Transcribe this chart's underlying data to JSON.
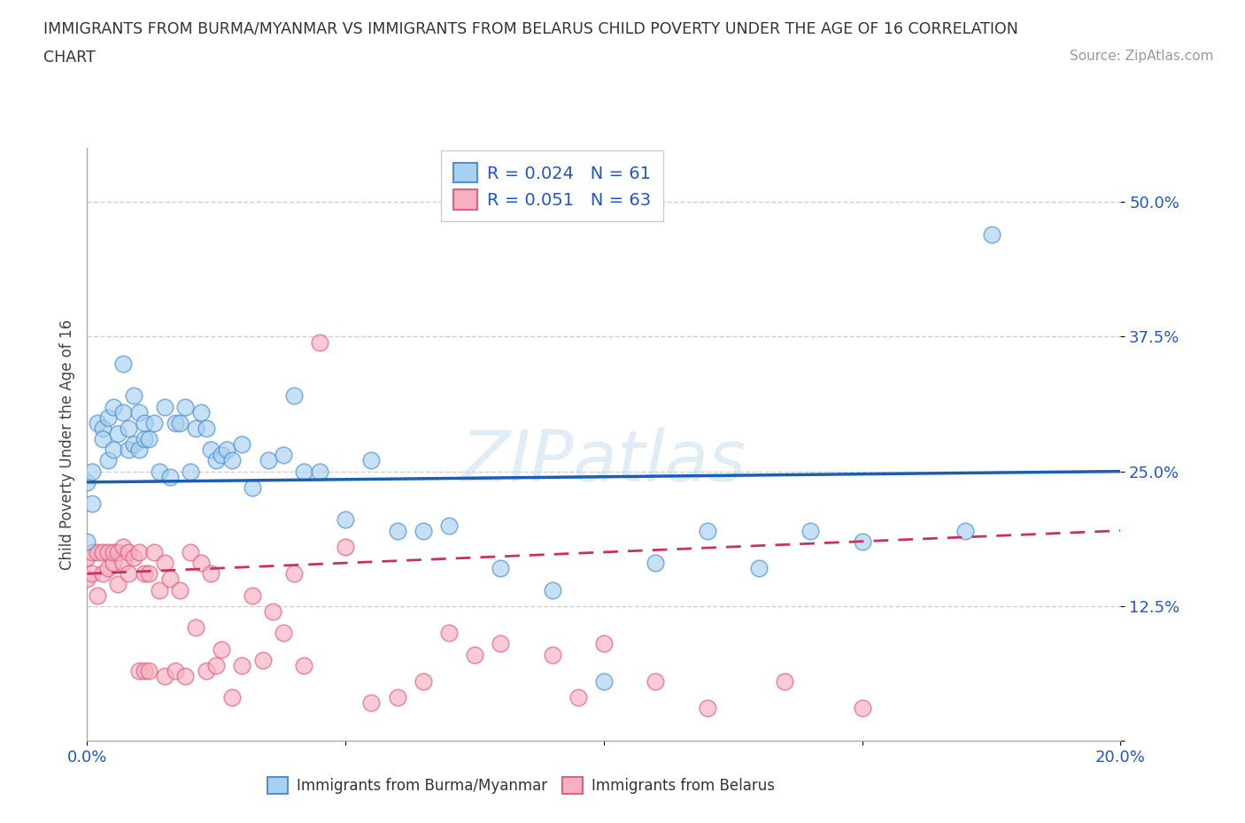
{
  "title_line1": "IMMIGRANTS FROM BURMA/MYANMAR VS IMMIGRANTS FROM BELARUS CHILD POVERTY UNDER THE AGE OF 16 CORRELATION",
  "title_line2": "CHART",
  "source": "Source: ZipAtlas.com",
  "ylabel": "Child Poverty Under the Age of 16",
  "xlim": [
    0.0,
    0.2
  ],
  "ylim": [
    0.0,
    0.55
  ],
  "xtick_positions": [
    0.0,
    0.05,
    0.1,
    0.15,
    0.2
  ],
  "xticklabels": [
    "0.0%",
    "",
    "",
    "",
    "20.0%"
  ],
  "ytick_positions": [
    0.0,
    0.125,
    0.25,
    0.375,
    0.5
  ],
  "yticklabels": [
    "",
    "12.5%",
    "25.0%",
    "37.5%",
    "50.0%"
  ],
  "color_burma": "#a8d0f0",
  "color_burma_edge": "#5090d0",
  "color_belarus": "#f8b0c0",
  "color_belarus_edge": "#e06080",
  "color_burma_line": "#1a5fb4",
  "color_belarus_line": "#cc3060",
  "R_burma": 0.024,
  "N_burma": 61,
  "R_belarus": 0.051,
  "N_belarus": 63,
  "watermark": "ZIPatlas",
  "grid_color": "#d0d0d0",
  "background_color": "#ffffff",
  "burma_x": [
    0.0,
    0.0,
    0.001,
    0.001,
    0.002,
    0.003,
    0.003,
    0.004,
    0.004,
    0.005,
    0.005,
    0.006,
    0.007,
    0.007,
    0.008,
    0.008,
    0.009,
    0.009,
    0.01,
    0.01,
    0.011,
    0.011,
    0.012,
    0.013,
    0.014,
    0.015,
    0.016,
    0.017,
    0.018,
    0.019,
    0.02,
    0.021,
    0.022,
    0.023,
    0.024,
    0.025,
    0.026,
    0.027,
    0.028,
    0.03,
    0.032,
    0.035,
    0.038,
    0.04,
    0.042,
    0.045,
    0.05,
    0.055,
    0.06,
    0.065,
    0.07,
    0.08,
    0.09,
    0.1,
    0.11,
    0.12,
    0.13,
    0.14,
    0.15,
    0.17,
    0.175
  ],
  "burma_y": [
    0.24,
    0.185,
    0.25,
    0.22,
    0.295,
    0.29,
    0.28,
    0.26,
    0.3,
    0.27,
    0.31,
    0.285,
    0.305,
    0.35,
    0.27,
    0.29,
    0.275,
    0.32,
    0.27,
    0.305,
    0.295,
    0.28,
    0.28,
    0.295,
    0.25,
    0.31,
    0.245,
    0.295,
    0.295,
    0.31,
    0.25,
    0.29,
    0.305,
    0.29,
    0.27,
    0.26,
    0.265,
    0.27,
    0.26,
    0.275,
    0.235,
    0.26,
    0.265,
    0.32,
    0.25,
    0.25,
    0.205,
    0.26,
    0.195,
    0.195,
    0.2,
    0.16,
    0.14,
    0.055,
    0.165,
    0.195,
    0.16,
    0.195,
    0.185,
    0.195,
    0.47
  ],
  "belarus_x": [
    0.0,
    0.0,
    0.001,
    0.001,
    0.002,
    0.002,
    0.003,
    0.003,
    0.004,
    0.004,
    0.005,
    0.005,
    0.006,
    0.006,
    0.007,
    0.007,
    0.008,
    0.008,
    0.009,
    0.01,
    0.01,
    0.011,
    0.011,
    0.012,
    0.012,
    0.013,
    0.014,
    0.015,
    0.015,
    0.016,
    0.017,
    0.018,
    0.019,
    0.02,
    0.021,
    0.022,
    0.023,
    0.024,
    0.025,
    0.026,
    0.028,
    0.03,
    0.032,
    0.034,
    0.036,
    0.038,
    0.04,
    0.042,
    0.045,
    0.05,
    0.055,
    0.06,
    0.065,
    0.07,
    0.075,
    0.08,
    0.09,
    0.095,
    0.1,
    0.11,
    0.12,
    0.135,
    0.15
  ],
  "belarus_y": [
    0.15,
    0.17,
    0.155,
    0.175,
    0.175,
    0.135,
    0.175,
    0.155,
    0.16,
    0.175,
    0.165,
    0.175,
    0.145,
    0.175,
    0.165,
    0.18,
    0.155,
    0.175,
    0.17,
    0.065,
    0.175,
    0.155,
    0.065,
    0.065,
    0.155,
    0.175,
    0.14,
    0.165,
    0.06,
    0.15,
    0.065,
    0.14,
    0.06,
    0.175,
    0.105,
    0.165,
    0.065,
    0.155,
    0.07,
    0.085,
    0.04,
    0.07,
    0.135,
    0.075,
    0.12,
    0.1,
    0.155,
    0.07,
    0.37,
    0.18,
    0.035,
    0.04,
    0.055,
    0.1,
    0.08,
    0.09,
    0.08,
    0.04,
    0.09,
    0.055,
    0.03,
    0.055,
    0.03
  ],
  "burma_line_x0": 0.0,
  "burma_line_y0": 0.24,
  "burma_line_x1": 0.2,
  "burma_line_y1": 0.25,
  "belarus_line_x0": 0.0,
  "belarus_line_y0": 0.155,
  "belarus_line_x1": 0.2,
  "belarus_line_y1": 0.195
}
